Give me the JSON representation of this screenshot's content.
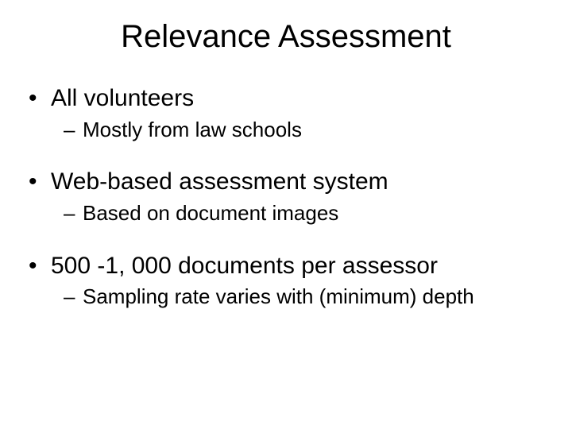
{
  "title": "Relevance Assessment",
  "title_fontsize": 40,
  "body_fontsize_l1": 30,
  "body_fontsize_l2": 26,
  "text_color": "#000000",
  "background_color": "#ffffff",
  "bullets": [
    {
      "text": "All volunteers",
      "sub": [
        {
          "text": "Mostly from law schools"
        }
      ]
    },
    {
      "text": "Web-based assessment system",
      "sub": [
        {
          "text": "Based on document images"
        }
      ]
    },
    {
      "text": "500 -1, 000 documents per assessor",
      "sub": [
        {
          "text": "Sampling rate varies with (minimum) depth"
        }
      ]
    }
  ]
}
